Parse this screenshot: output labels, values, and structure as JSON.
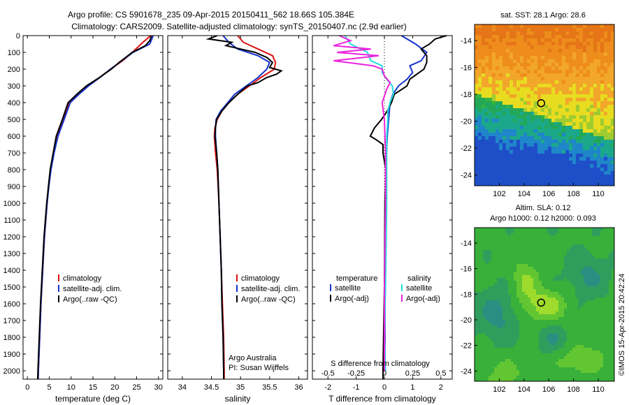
{
  "header": {
    "line1": "Argo profile: CS 5901678_235 09-Apr-2015 20150411_562 18.66S 105.384E",
    "line2": "Climatology: CARS2009. Satellite-adjusted climatology: synTS_20150407.nc (2.9d earlier)"
  },
  "credit": "©IMOS 15-Apr-2015 20:42:24",
  "colors": {
    "red": "#dd1111",
    "blue": "#1533cc",
    "black": "#000000",
    "cyan": "#22dddd",
    "magenta": "#ee22dd"
  },
  "chart_data": [
    {
      "type": "line",
      "name": "temperature",
      "xlabel": "temperature (deg C)",
      "xlim": [
        -1,
        31
      ],
      "xticks": [
        0,
        5,
        10,
        15,
        20,
        25,
        30
      ],
      "ylim": [
        2050,
        0
      ],
      "yticks": [
        0,
        100,
        200,
        300,
        400,
        500,
        600,
        700,
        800,
        900,
        1000,
        1100,
        1200,
        1300,
        1400,
        1500,
        1600,
        1700,
        1800,
        1900,
        2000
      ],
      "legend": [
        "climatology",
        "satellite-adj. clim.",
        "Argo(..raw -QC)"
      ],
      "series": [
        {
          "name": "climatology",
          "color": "red",
          "depth": [
            0,
            50,
            100,
            150,
            200,
            250,
            300,
            350,
            400,
            500,
            600,
            700,
            800,
            900,
            1000,
            1200,
            1400,
            1600,
            1800,
            2000,
            2050
          ],
          "values": [
            28.2,
            26,
            24,
            21.8,
            19,
            16.5,
            13.8,
            11.5,
            9.5,
            8.2,
            6.8,
            6.0,
            5.3,
            4.8,
            4.5,
            3.9,
            3.5,
            3.1,
            2.8,
            2.5,
            2.45
          ]
        },
        {
          "name": "satellite-adj. clim.",
          "color": "blue",
          "depth": [
            0,
            50,
            100,
            150,
            200,
            250,
            300,
            350,
            400,
            500,
            600,
            700,
            800,
            900,
            1000,
            1200,
            1400,
            1600,
            1800,
            2000,
            2050
          ],
          "values": [
            28.8,
            28,
            24.2,
            21.6,
            19,
            16.6,
            14,
            11.8,
            9.8,
            8.4,
            7.0,
            6.1,
            5.4,
            4.9,
            4.5,
            3.9,
            3.5,
            3.1,
            2.8,
            2.5,
            2.45
          ]
        },
        {
          "name": "Argo(..raw -QC)",
          "color": "black",
          "depth": [
            0,
            30,
            60,
            100,
            130,
            160,
            200,
            250,
            300,
            350,
            400,
            500,
            600,
            700,
            800,
            900,
            1000,
            1200,
            1400,
            1600,
            1800,
            2000,
            2050
          ],
          "values": [
            28.4,
            28,
            27,
            24,
            22.5,
            21,
            19.2,
            16.5,
            13.5,
            11.3,
            9.3,
            8.0,
            6.6,
            5.9,
            5.2,
            4.8,
            4.4,
            3.8,
            3.4,
            3.0,
            2.7,
            2.4,
            2.35
          ]
        }
      ]
    },
    {
      "type": "line",
      "name": "salinity",
      "xlabel": "salinity",
      "xlim": [
        33.75,
        36.15
      ],
      "xticks": [
        34,
        34.5,
        35,
        35.5,
        36
      ],
      "ylim": [
        2050,
        0
      ],
      "legend": [
        "climatology",
        "satellite-adj. clim.",
        "Argo(..raw -QC)"
      ],
      "annotations": [
        "Argo Australia",
        "PI: Susan Wijffels"
      ],
      "series": [
        {
          "name": "climatology",
          "color": "red",
          "depth": [
            0,
            40,
            80,
            120,
            160,
            200,
            250,
            300,
            350,
            400,
            450,
            500,
            550,
            600,
            700,
            800,
            1000,
            1200,
            1400,
            1600,
            1800,
            2000,
            2050
          ],
          "values": [
            34.95,
            35.05,
            35.3,
            35.55,
            35.6,
            35.58,
            35.35,
            35.15,
            34.95,
            34.8,
            34.68,
            34.6,
            34.56,
            34.55,
            34.57,
            34.6,
            34.63,
            34.65,
            34.67,
            34.69,
            34.71,
            34.72,
            34.72
          ]
        },
        {
          "name": "satellite-adj. clim.",
          "color": "blue",
          "depth": [
            0,
            40,
            80,
            120,
            160,
            200,
            250,
            300,
            350,
            400,
            450,
            500,
            550,
            600,
            700,
            800,
            1000,
            1200,
            1400,
            1600,
            1800,
            2000,
            2050
          ],
          "values": [
            34.7,
            34.8,
            34.95,
            35.3,
            35.5,
            35.45,
            35.3,
            35.1,
            34.9,
            34.78,
            34.66,
            34.58,
            34.57,
            34.57,
            34.59,
            34.61,
            34.63,
            34.65,
            34.67,
            34.68,
            34.7,
            34.71,
            34.71
          ]
        },
        {
          "name": "Argo(..raw -QC)",
          "color": "black",
          "depth": [
            0,
            20,
            40,
            60,
            80,
            100,
            130,
            160,
            190,
            210,
            230,
            250,
            280,
            300,
            350,
            400,
            450,
            500,
            550,
            600,
            700,
            800,
            1000,
            1200,
            1400,
            1600,
            1800,
            2000,
            2050
          ],
          "values": [
            34.6,
            34.45,
            34.85,
            34.75,
            35.0,
            35.25,
            35.45,
            35.55,
            35.5,
            35.7,
            35.62,
            35.45,
            35.3,
            35.12,
            34.95,
            34.8,
            34.68,
            34.59,
            34.57,
            34.56,
            34.59,
            34.61,
            34.63,
            34.65,
            34.67,
            34.68,
            34.7,
            34.71,
            34.71
          ]
        }
      ]
    },
    {
      "type": "line",
      "name": "differences",
      "xlabel": "T difference from climatology",
      "xlabel_top": "S difference from climatology",
      "xlim": [
        -2.55,
        2.4
      ],
      "xticks": [
        -2,
        -1,
        0,
        1,
        2
      ],
      "s_ticks": [
        -0.5,
        -0.25,
        0,
        0.25,
        0.5
      ],
      "s_scale": 4,
      "ylim": [
        2050,
        0
      ],
      "legend": {
        "temperature_title": "temperature",
        "salinity_title": "salinity",
        "sat": "satellite",
        "argo": "Argo(-adj)"
      },
      "series": [
        {
          "name": "temperature satellite",
          "color": "blue",
          "var": "T",
          "depth": [
            0,
            50,
            100,
            150,
            180,
            220,
            260,
            300,
            350,
            400,
            500,
            600,
            800,
            1000,
            1500,
            2000
          ],
          "values": [
            0.6,
            1.1,
            1.5,
            1.3,
            0.9,
            1.0,
            0.8,
            0.5,
            0.3,
            0.2,
            0.15,
            0.1,
            0.05,
            0.03,
            0.02,
            0.02
          ]
        },
        {
          "name": "temperature Argo(-adj)",
          "color": "black",
          "var": "T",
          "depth": [
            0,
            20,
            50,
            80,
            120,
            160,
            200,
            260,
            300,
            350,
            400,
            450,
            500,
            550,
            600,
            620,
            650,
            700,
            800,
            1000,
            1500,
            2000,
            2050
          ],
          "values": [
            2.2,
            1.8,
            1.6,
            1.3,
            1.5,
            1.5,
            1.4,
            0.9,
            0.8,
            0.35,
            0.25,
            0.1,
            -0.1,
            -0.35,
            -0.5,
            -0.3,
            -0.05,
            -0.05,
            0.05,
            0.02,
            0.0,
            -0.05,
            -0.05
          ]
        },
        {
          "name": "salinity satellite",
          "color": "cyan",
          "var": "S",
          "depth": [
            0,
            50,
            100,
            150,
            180,
            220,
            260,
            300,
            350,
            400,
            450,
            500,
            600,
            800,
            1000,
            1500,
            1800,
            2000
          ],
          "values": [
            -0.35,
            -0.3,
            -0.15,
            -0.12,
            -0.02,
            -0.02,
            0.02,
            0.07,
            0.08,
            0.05,
            0.03,
            0.03,
            0.02,
            0.02,
            0.02,
            0.01,
            0.0,
            0.01
          ]
        },
        {
          "name": "salinity Argo(-adj)",
          "color": "magenta",
          "var": "S",
          "depth": [
            0,
            30,
            60,
            80,
            100,
            120,
            150,
            180,
            200,
            240,
            280,
            320,
            360,
            400,
            450,
            500,
            700,
            1000,
            1500,
            2000
          ],
          "values": [
            -0.4,
            -0.3,
            -0.45,
            -0.12,
            -0.42,
            -0.05,
            -0.45,
            -0.1,
            -0.02,
            0.0,
            0.05,
            0.02,
            0.0,
            -0.02,
            -0.01,
            0.0,
            0.01,
            0.01,
            0.0,
            0.0
          ]
        }
      ]
    },
    {
      "type": "heatmap",
      "name": "sst-map",
      "title": "sat. SST: 28.1 Argo: 28.6",
      "xlim": [
        100,
        111.3
      ],
      "ylim": [
        -24.8,
        -12.8
      ],
      "xticks": [
        102,
        104,
        106,
        108,
        110
      ],
      "yticks": [
        -14,
        -16,
        -18,
        -20,
        -22,
        -24
      ],
      "marker": [
        105.384,
        -18.66
      ],
      "colors": [
        "#1e4fc8",
        "#1f86c9",
        "#1ba88a",
        "#22a858",
        "#36b440",
        "#9ecc30",
        "#e8dc20",
        "#f2a62a",
        "#ee8d1c",
        "#e57516"
      ]
    },
    {
      "type": "heatmap",
      "name": "sla-map",
      "title": "Altim. SLA: 0.12",
      "subtitle": "Argo h1000: 0.12 h2000: 0.093",
      "xlim": [
        100,
        111.3
      ],
      "ylim": [
        -24.8,
        -12.8
      ],
      "xticks": [
        102,
        104,
        106,
        108,
        110
      ],
      "yticks": [
        -14,
        -16,
        -18,
        -20,
        -22,
        -24
      ],
      "marker": [
        105.384,
        -18.66
      ],
      "colors": [
        "#2a8f82",
        "#2f9e5c",
        "#38b03a",
        "#62c632",
        "#9edb2c",
        "#c5e52a"
      ]
    }
  ]
}
